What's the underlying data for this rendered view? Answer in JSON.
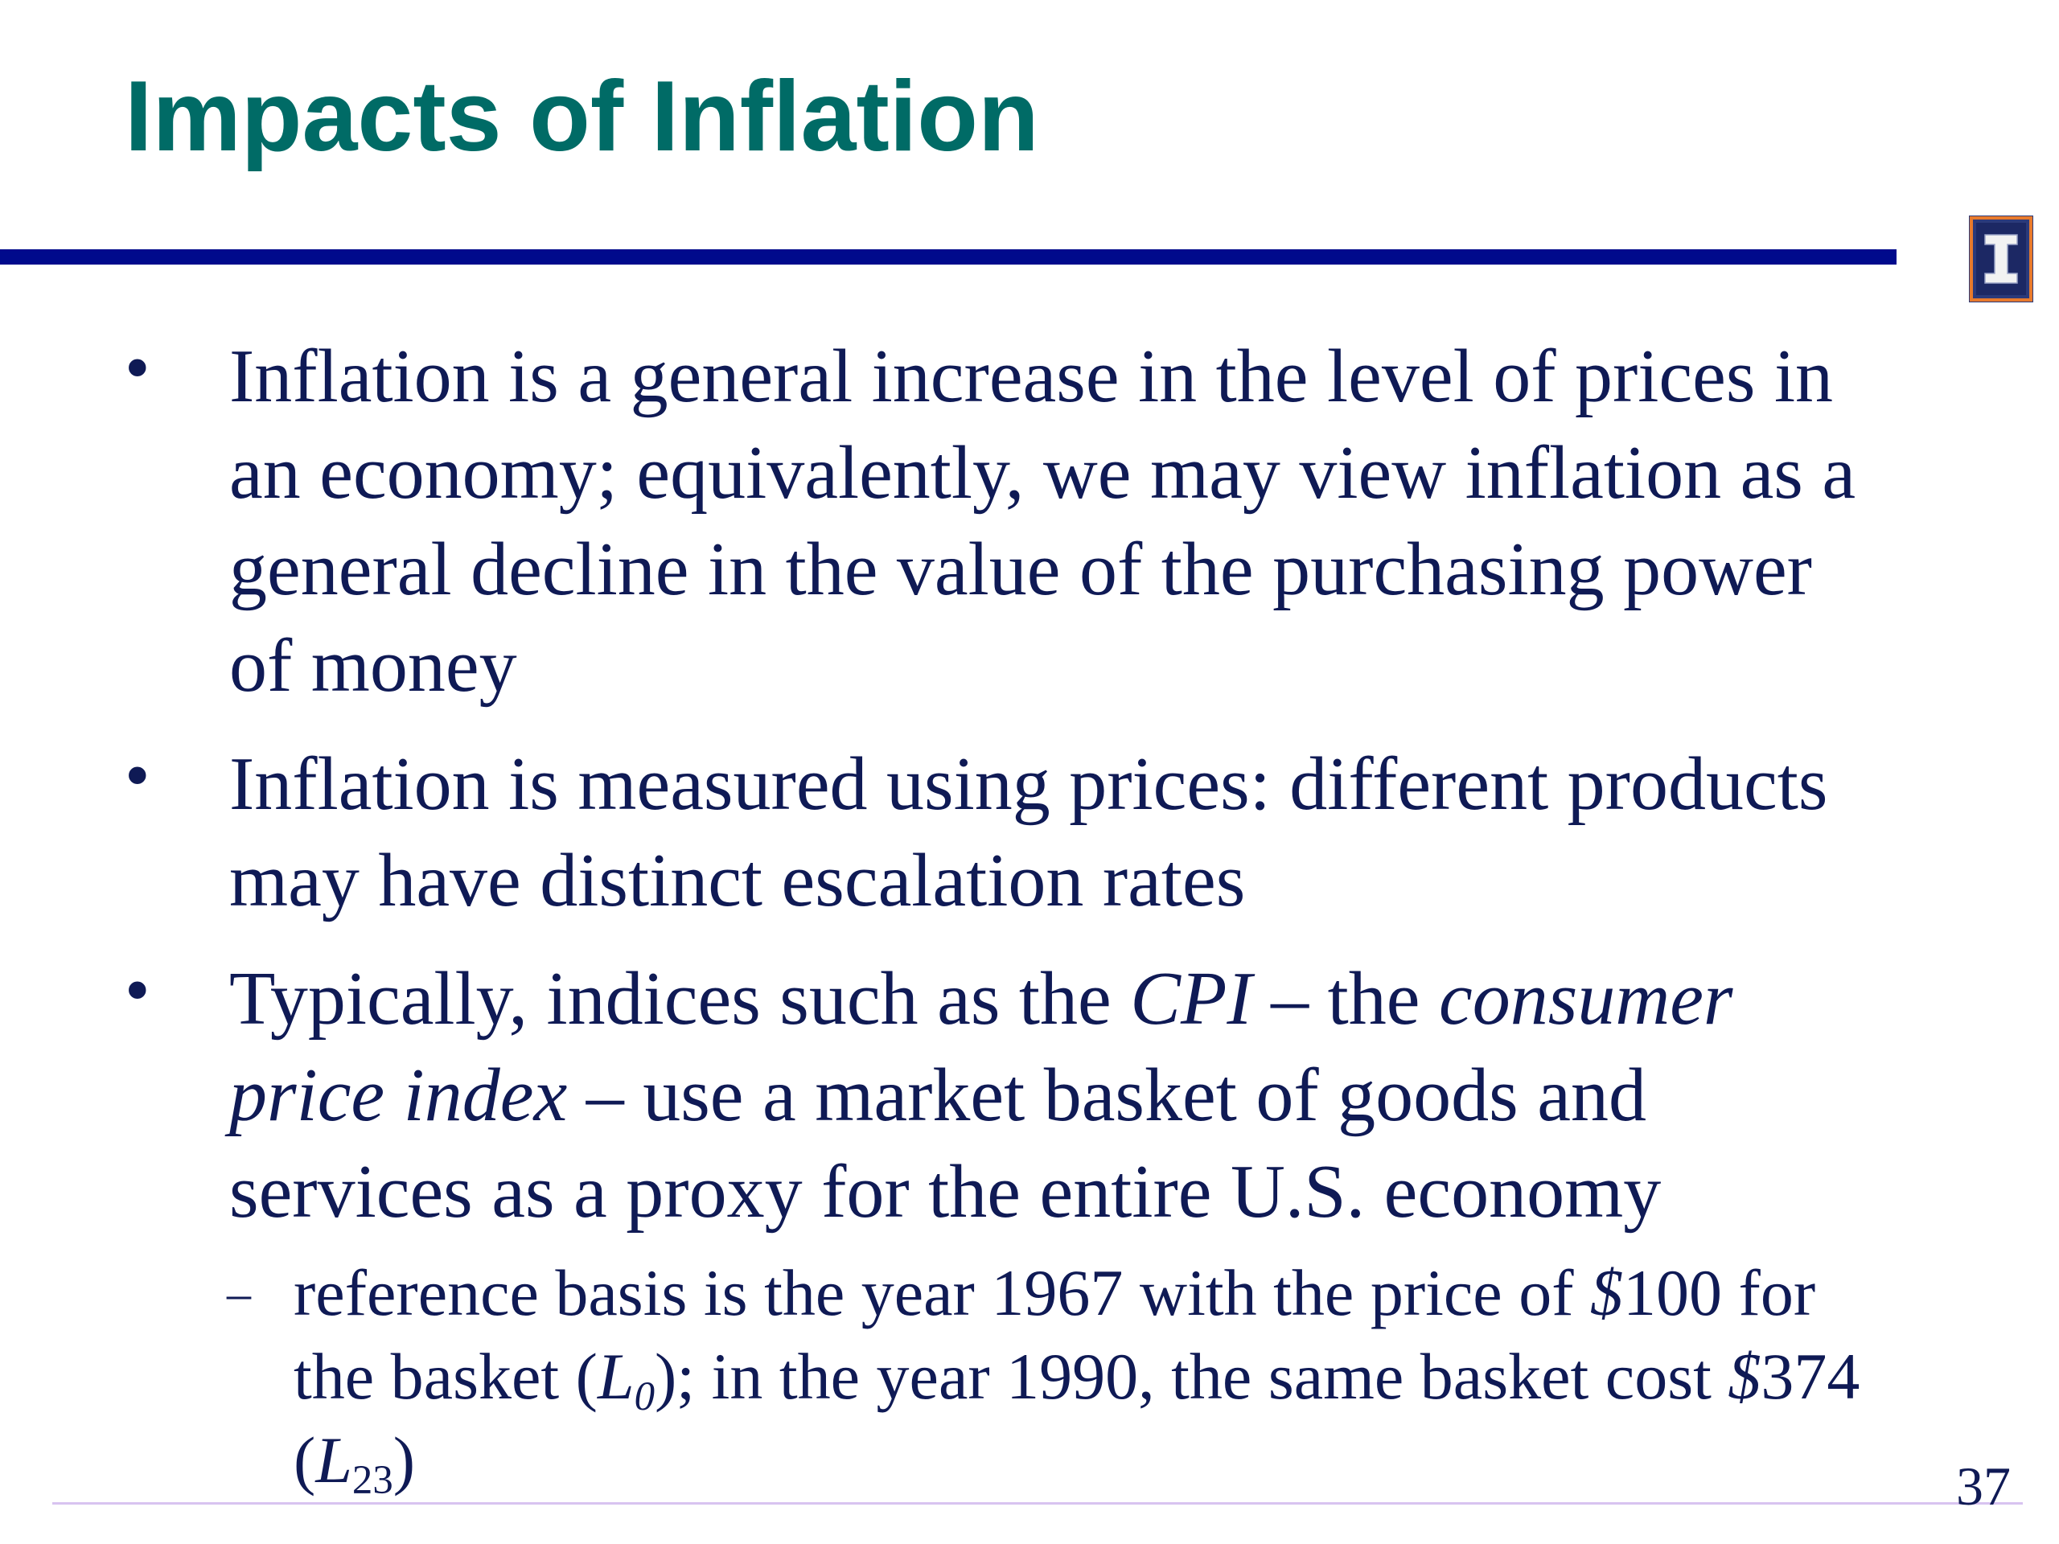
{
  "slide": {
    "title": "Impacts of Inflation",
    "page_number": "37",
    "logo_icon": "illinois-block-i-logo",
    "colors": {
      "title": "#006b66",
      "rule": "#000a8c",
      "text": "#0f1a55",
      "footer_rule": "#d8c3f0"
    },
    "bullet_symbol": "•",
    "dash_symbol": "–",
    "bullets": [
      {
        "lines": [
          "Inflation is a general increase in the level of prices in",
          "an economy; equivalently, we may view inflation as a",
          "general decline in the value of the purchasing power",
          "of money"
        ]
      },
      {
        "lines": [
          "Inflation is measured using prices: different products",
          "may have distinct escalation rates"
        ]
      },
      {
        "line1_before": "Typically, indices such as the ",
        "line1_cpi": "CPI",
        "line1_mid": " – the ",
        "line1_consumer": "consumer",
        "line2_italic": "price index",
        "line2_rest": " – use a market basket of goods and",
        "line3": "services as a proxy for the entire U.S. economy",
        "sub": {
          "line1_before": "reference basis is the year 1967 with the price of ",
          "line1_dollar": "$",
          "line1_after": "100 for",
          "line2_before": "the basket (",
          "line2_L": "L",
          "line2_L_sub": "0",
          "line2_mid": "); in the year 1990, the same basket cost ",
          "line2_dollar": "$",
          "line2_after": "374",
          "line3_open": "(",
          "line3_L": "L",
          "line3_L_sub": "23",
          "line3_close": ")"
        }
      }
    ]
  }
}
